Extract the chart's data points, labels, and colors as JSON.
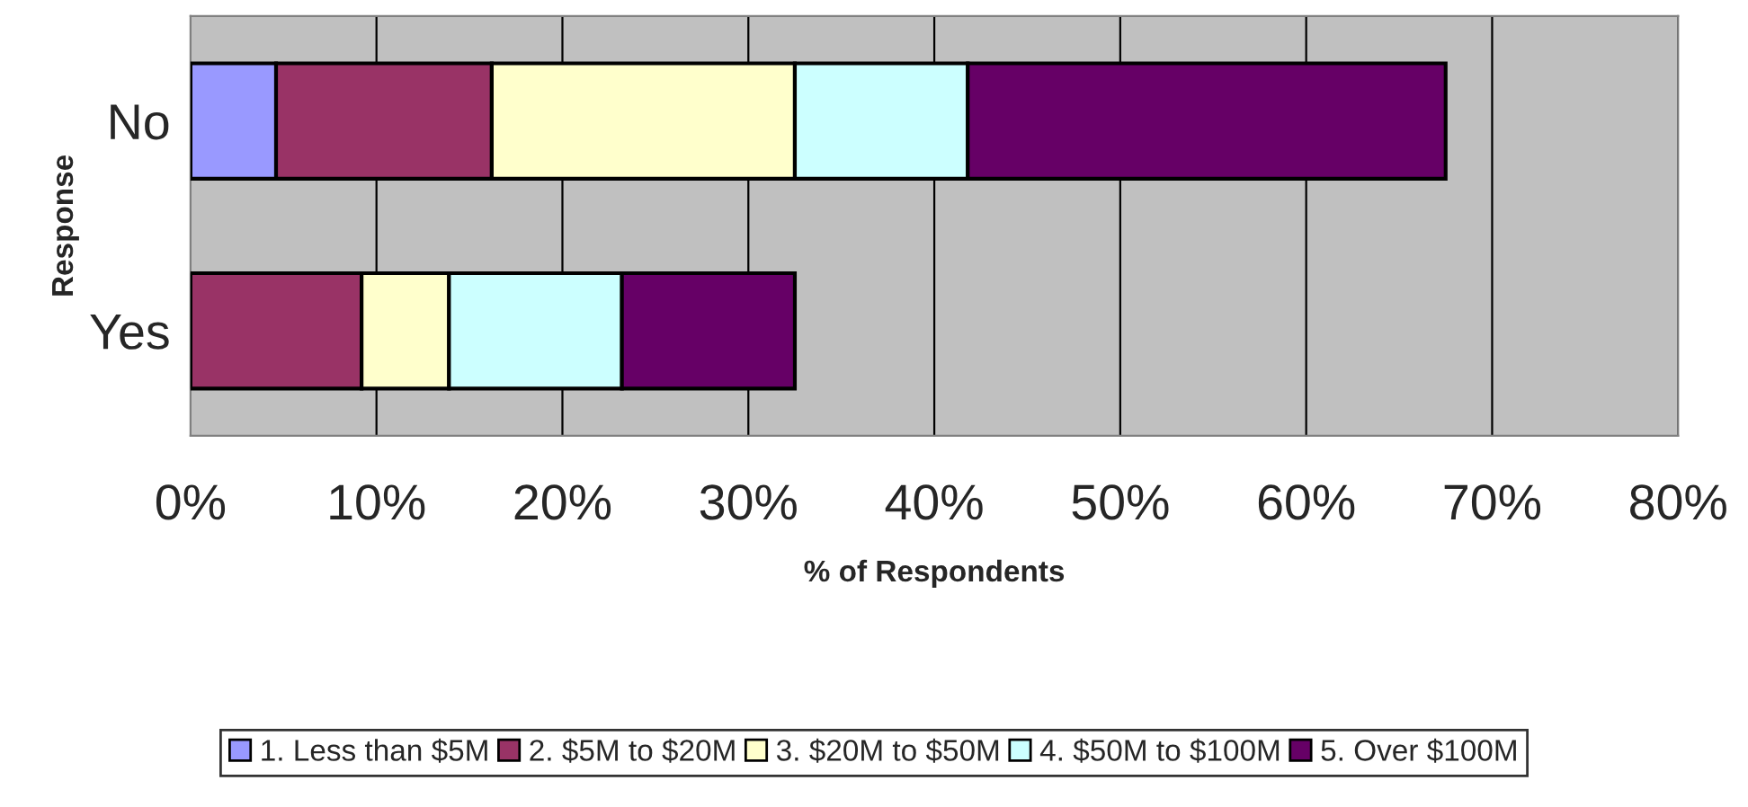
{
  "chart_data": {
    "type": "bar",
    "orientation": "horizontal",
    "stacked": true,
    "xlabel": "% of Respondents",
    "ylabel": "Response",
    "categories": [
      "No",
      "Yes"
    ],
    "series": [
      {
        "name": "1. Less than $5M",
        "color": "#9999ff",
        "values": [
          4.6,
          0
        ]
      },
      {
        "name": "2. $5M to $20M",
        "color": "#993366",
        "values": [
          11.6,
          9.2
        ]
      },
      {
        "name": "3. $20M to $50M",
        "color": "#ffffcc",
        "values": [
          16.3,
          4.7
        ]
      },
      {
        "name": "4. $50M to $100M",
        "color": "#ccffff",
        "values": [
          9.3,
          9.3
        ]
      },
      {
        "name": "5. Over $100M",
        "color": "#660066",
        "values": [
          25.7,
          9.3
        ]
      }
    ],
    "xlim": [
      0,
      80
    ],
    "xticks": [
      {
        "value": 0,
        "label": "0%"
      },
      {
        "value": 10,
        "label": "10%"
      },
      {
        "value": 20,
        "label": "20%"
      },
      {
        "value": 30,
        "label": "30%"
      },
      {
        "value": 40,
        "label": "40%"
      },
      {
        "value": 50,
        "label": "50%"
      },
      {
        "value": 60,
        "label": "60%"
      },
      {
        "value": 70,
        "label": "70%"
      },
      {
        "value": 80,
        "label": "80%"
      }
    ],
    "grid": "x",
    "legend": "bottom"
  }
}
